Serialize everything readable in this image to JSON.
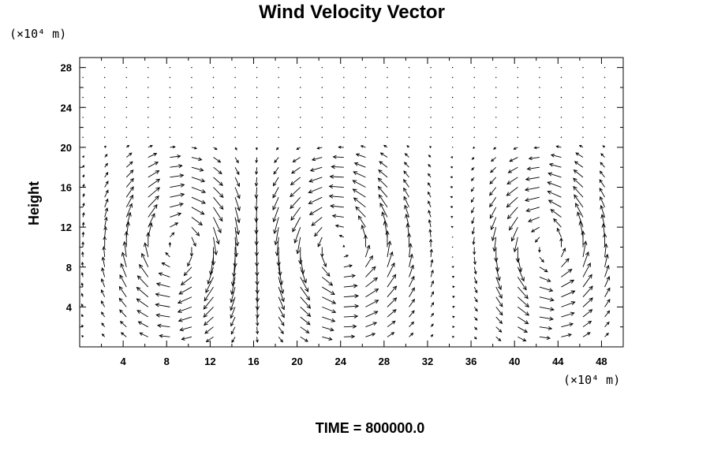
{
  "chart_data": {
    "type": "vector-field",
    "title": "Wind Velocity Vector",
    "ylabel": "Height",
    "xlabel": "",
    "x_unit_label": "(×10⁴ m)",
    "y_unit_label": "(×10⁴ m)",
    "footer": "TIME = 800000.0",
    "xlim": [
      0,
      50
    ],
    "ylim": [
      0,
      29
    ],
    "x_ticks": [
      "4",
      "8",
      "12",
      "16",
      "20",
      "24",
      "28",
      "32",
      "36",
      "40",
      "44",
      "48"
    ],
    "x_tick_values": [
      4,
      8,
      12,
      16,
      20,
      24,
      28,
      32,
      36,
      40,
      44,
      48
    ],
    "y_ticks": [
      "4",
      "8",
      "12",
      "16",
      "20",
      "24",
      "28"
    ],
    "y_tick_values": [
      4,
      8,
      12,
      16,
      20,
      24,
      28
    ],
    "grid": {
      "x0": 0.3,
      "dx": 2,
      "nx": 25,
      "y0": 1,
      "dy": 1,
      "ny": 28
    },
    "active_layer_top": 20,
    "circulation_cells": [
      {
        "cx": 9,
        "cy": 10,
        "rx": 7,
        "ry": 10,
        "sense": -1
      },
      {
        "cx": 24,
        "cy": 10,
        "rx": 8,
        "ry": 10,
        "sense": 1
      },
      {
        "cx": 43,
        "cy": 10,
        "rx": 6.5,
        "ry": 10,
        "sense": 1
      }
    ],
    "vector_scale": 1.8,
    "arrow_color": "#000000"
  }
}
